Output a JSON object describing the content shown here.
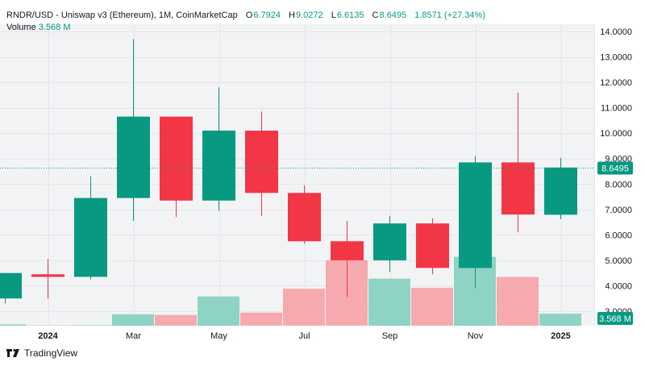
{
  "legend": {
    "symbol": "RNDR/USD - Uniswap v3 (Ethereum), 1M, CoinMarketCap",
    "o_label": "O",
    "o_val": "6.7924",
    "h_label": "H",
    "h_val": "9.0272",
    "l_label": "L",
    "l_val": "6.6135",
    "c_label": "C",
    "c_val": "8.6495",
    "change": "1.8571 (+27.34%)",
    "volume_label": "Volume",
    "volume_val": "3.568 M"
  },
  "footer": {
    "brand": "TradingView",
    "logo_icon": "tradingview-logo-icon"
  },
  "colors": {
    "up": "#089981",
    "down": "#F23645",
    "up_volume": "#8fd3c5",
    "down_volume": "#f7a9b0",
    "grid": "#f0f3fa",
    "price_line": "#089981"
  },
  "chart_data": {
    "type": "candlestick",
    "title": "RNDR/USD - Uniswap v3 (Ethereum), 1M, CoinMarketCap",
    "interval": "1M",
    "price_scale": {
      "min": 3.0,
      "max": 14.0,
      "ticks": [
        "3.0000",
        "4.0000",
        "5.0000",
        "6.0000",
        "7.0000",
        "8.0000",
        "9.0000",
        "10.0000",
        "11.0000",
        "12.0000",
        "13.0000",
        "14.0000"
      ],
      "position": "right"
    },
    "x_ticks": [
      "2024",
      "Mar",
      "May",
      "Jul",
      "Sep",
      "Nov",
      "2025"
    ],
    "last_price_label": "8.6495",
    "last_volume_label": "3.568 M",
    "grid": true,
    "candles": [
      {
        "date": "2023-12",
        "open": 3.5,
        "high": 4.5,
        "low": 3.3,
        "close": 4.5,
        "volume": 0.4
      },
      {
        "date": "2024-01",
        "open": 4.45,
        "high": 5.05,
        "low": 3.5,
        "close": 4.35,
        "volume": 0.1
      },
      {
        "date": "2024-02",
        "open": 4.35,
        "high": 8.3,
        "low": 4.25,
        "close": 7.45,
        "volume": 0.15
      },
      {
        "date": "2024-03",
        "open": 7.45,
        "high": 13.7,
        "low": 6.55,
        "close": 10.65,
        "volume": 3.4
      },
      {
        "date": "2024-04",
        "open": 10.65,
        "high": 10.65,
        "low": 6.7,
        "close": 7.35,
        "volume": 3.2
      },
      {
        "date": "2024-05",
        "open": 7.35,
        "high": 11.8,
        "low": 6.95,
        "close": 10.1,
        "volume": 8.7
      },
      {
        "date": "2024-06",
        "open": 10.1,
        "high": 10.85,
        "low": 6.75,
        "close": 7.65,
        "volume": 3.9
      },
      {
        "date": "2024-07",
        "open": 7.65,
        "high": 7.95,
        "low": 5.65,
        "close": 5.75,
        "volume": 11.0
      },
      {
        "date": "2024-08",
        "open": 5.75,
        "high": 6.55,
        "low": 3.55,
        "close": 5.0,
        "volume": 19.5
      },
      {
        "date": "2024-09",
        "open": 5.0,
        "high": 6.75,
        "low": 4.55,
        "close": 6.45,
        "volume": 14.0
      },
      {
        "date": "2024-10",
        "open": 6.45,
        "high": 6.65,
        "low": 4.45,
        "close": 4.7,
        "volume": 11.3
      },
      {
        "date": "2024-11",
        "open": 4.7,
        "high": 9.1,
        "low": 3.9,
        "close": 8.85,
        "volume": 20.5
      },
      {
        "date": "2024-12",
        "open": 8.85,
        "high": 11.6,
        "low": 6.1,
        "close": 6.8,
        "volume": 14.5
      },
      {
        "date": "2025-01",
        "open": 6.7924,
        "high": 9.0272,
        "low": 6.6135,
        "close": 8.6495,
        "volume": 3.568
      }
    ]
  }
}
